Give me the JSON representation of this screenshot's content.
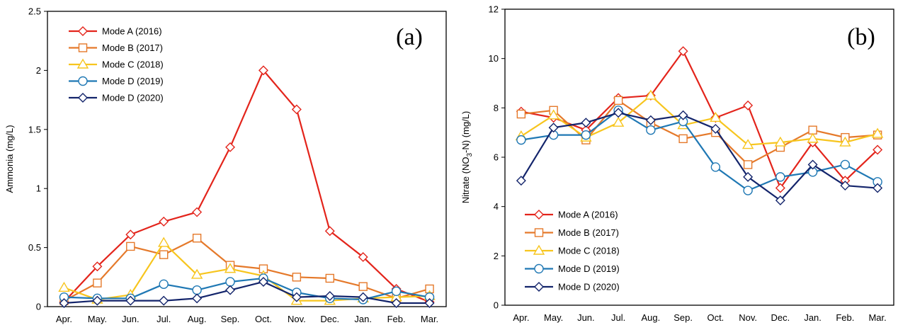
{
  "chart_data": [
    {
      "type": "line",
      "panel_label": "(a)",
      "ylabel": "Ammonia (mg/L)",
      "xlabel": "",
      "categories": [
        "Apr.",
        "May.",
        "Jun.",
        "Jul.",
        "Aug.",
        "Sep.",
        "Oct.",
        "Nov.",
        "Dec.",
        "Jan.",
        "Feb.",
        "Mar."
      ],
      "ylim": [
        0,
        2.5
      ],
      "yticks": [
        "0",
        "0.5",
        "1",
        "1.5",
        "2",
        "2.5"
      ],
      "legend_position": "top-left",
      "series": [
        {
          "name": "Mode A (2016)",
          "color": "#e3241b",
          "marker": "diamond",
          "values": [
            0.04,
            0.34,
            0.61,
            0.72,
            0.8,
            1.35,
            2.0,
            1.67,
            0.64,
            0.42,
            0.15,
            0.04
          ]
        },
        {
          "name": "Mode B (2017)",
          "color": "#e5792a",
          "marker": "square",
          "values": [
            0.05,
            0.2,
            0.51,
            0.44,
            0.58,
            0.35,
            0.32,
            0.25,
            0.24,
            0.17,
            0.07,
            0.15
          ]
        },
        {
          "name": "Mode C (2018)",
          "color": "#f7c51e",
          "marker": "triangle",
          "values": [
            0.16,
            0.06,
            0.1,
            0.54,
            0.27,
            0.32,
            0.26,
            0.05,
            0.05,
            0.07,
            0.08,
            0.09
          ]
        },
        {
          "name": "Mode D (2019)",
          "color": "#1f78b4",
          "marker": "circle",
          "values": [
            0.08,
            0.07,
            0.07,
            0.19,
            0.14,
            0.21,
            0.24,
            0.12,
            0.07,
            0.06,
            0.13,
            0.08
          ]
        },
        {
          "name": "Mode D (2020)",
          "color": "#13246b",
          "marker": "diamond",
          "values": [
            0.03,
            0.05,
            0.05,
            0.05,
            0.07,
            0.14,
            0.21,
            0.08,
            0.09,
            0.08,
            0.03,
            0.03
          ]
        }
      ]
    },
    {
      "type": "line",
      "panel_label": "(b)",
      "ylabel": "Nitrate (NO3-N) (mg/L)",
      "ylabel_parts": {
        "before": "Nitrate (NO",
        "sub": "3",
        "after": "-N) (mg/L)"
      },
      "xlabel": "",
      "categories": [
        "Apr.",
        "May.",
        "Jun.",
        "Jul.",
        "Aug.",
        "Sep.",
        "Oct.",
        "Nov.",
        "Dec.",
        "Jan.",
        "Feb.",
        "Mar."
      ],
      "ylim": [
        0,
        12
      ],
      "yticks": [
        "0",
        "2",
        "4",
        "6",
        "8",
        "10",
        "12"
      ],
      "legend_position": "bottom-left",
      "series": [
        {
          "name": "Mode A (2016)",
          "color": "#e3241b",
          "marker": "diamond",
          "values": [
            7.85,
            7.6,
            7.1,
            8.4,
            8.5,
            10.3,
            7.6,
            8.1,
            4.75,
            6.6,
            5.05,
            6.3
          ]
        },
        {
          "name": "Mode B (2017)",
          "color": "#e5792a",
          "marker": "square",
          "values": [
            7.75,
            7.9,
            6.7,
            8.3,
            7.4,
            6.75,
            7.0,
            5.7,
            6.4,
            7.1,
            6.8,
            6.9
          ]
        },
        {
          "name": "Mode C (2018)",
          "color": "#f7c51e",
          "marker": "triangle",
          "values": [
            6.85,
            7.7,
            6.8,
            7.4,
            8.5,
            7.3,
            7.6,
            6.5,
            6.6,
            6.75,
            6.6,
            6.95
          ]
        },
        {
          "name": "Mode D (2019)",
          "color": "#1f78b4",
          "marker": "circle",
          "values": [
            6.7,
            6.9,
            6.9,
            7.9,
            7.1,
            7.45,
            5.6,
            4.65,
            5.2,
            5.4,
            5.7,
            5.0
          ]
        },
        {
          "name": "Mode D (2020)",
          "color": "#13246b",
          "marker": "diamond",
          "values": [
            5.05,
            7.2,
            7.4,
            7.8,
            7.5,
            7.7,
            7.15,
            5.2,
            4.25,
            5.7,
            4.85,
            4.75
          ]
        }
      ]
    }
  ]
}
